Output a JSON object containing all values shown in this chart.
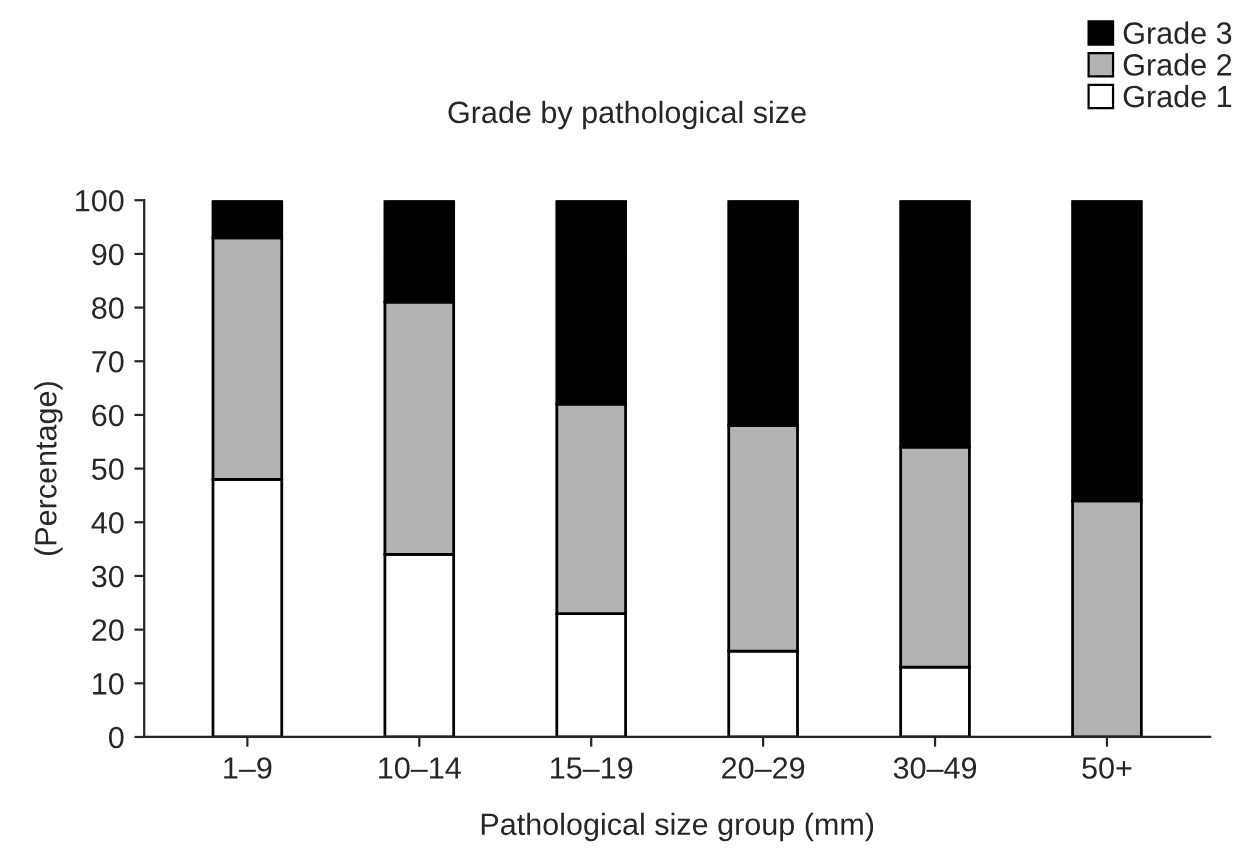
{
  "chart_data": {
    "type": "bar",
    "title": "Grade by pathological size",
    "xlabel": "Pathological size group (mm)",
    "ylabel": "(Percentage)",
    "categories": [
      "1–9",
      "10–14",
      "15–19",
      "20–29",
      "30–49",
      "50+"
    ],
    "stacked": true,
    "series": [
      {
        "name": "Grade 1",
        "color": "#ffffff",
        "values": [
          48,
          34,
          23,
          16,
          13,
          0
        ]
      },
      {
        "name": "Grade 2",
        "color": "#b3b3b3",
        "values": [
          45,
          47,
          39,
          42,
          41,
          44
        ]
      },
      {
        "name": "Grade 3",
        "color": "#000000",
        "values": [
          7,
          19,
          38,
          42,
          46,
          56
        ]
      }
    ],
    "ylim": [
      0,
      100
    ],
    "yticks": [
      0,
      10,
      20,
      30,
      40,
      50,
      60,
      70,
      80,
      90,
      100
    ],
    "grid": false,
    "legend": "top right"
  }
}
